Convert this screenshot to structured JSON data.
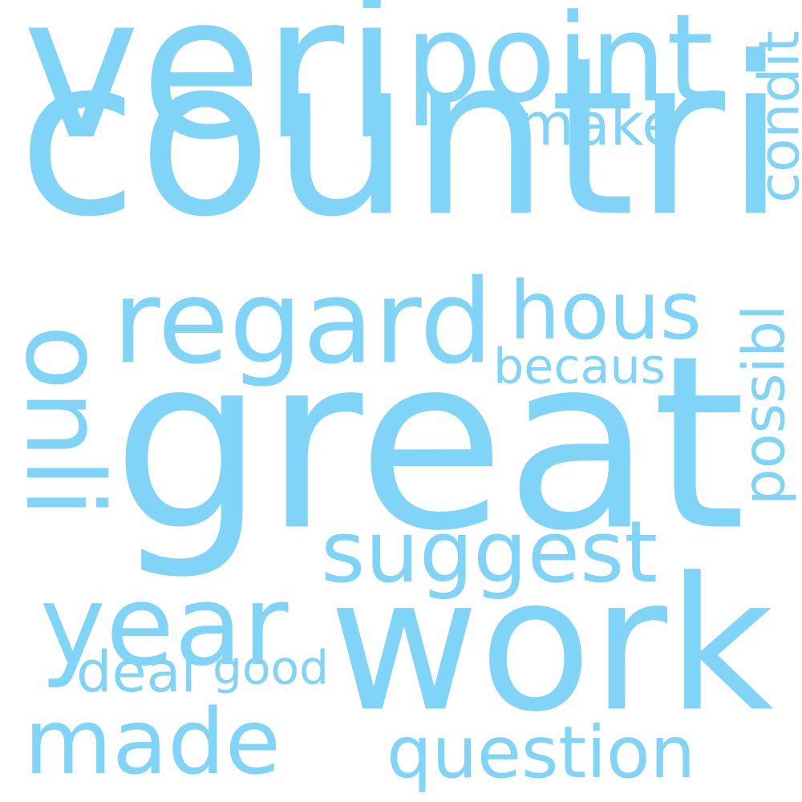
{
  "colors": {
    "background": "#ffffff",
    "word": "#80d4f8"
  },
  "words": [
    {
      "id": "countri",
      "text": "countri"
    },
    {
      "id": "great",
      "text": "great"
    },
    {
      "id": "work",
      "text": "work"
    },
    {
      "id": "veri",
      "text": "veri"
    },
    {
      "id": "point",
      "text": "point"
    },
    {
      "id": "regard",
      "text": "regard"
    },
    {
      "id": "made",
      "text": "made"
    },
    {
      "id": "year",
      "text": "year"
    },
    {
      "id": "suggest",
      "text": "suggest"
    },
    {
      "id": "hous",
      "text": "hous"
    },
    {
      "id": "question",
      "text": "question"
    },
    {
      "id": "onli",
      "text": "onli"
    },
    {
      "id": "make",
      "text": "make"
    },
    {
      "id": "possibl",
      "text": "possibl"
    },
    {
      "id": "condit",
      "text": "condit"
    },
    {
      "id": "becaus",
      "text": "becaus"
    },
    {
      "id": "good",
      "text": "good"
    },
    {
      "id": "deal",
      "text": "deal"
    }
  ]
}
